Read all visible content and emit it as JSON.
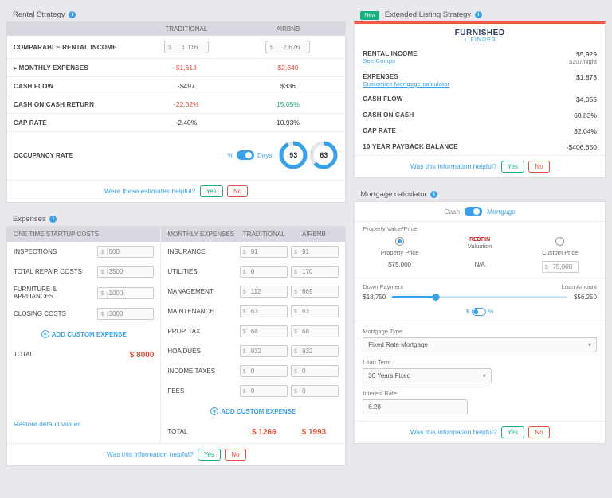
{
  "rental": {
    "title": "Rental Strategy",
    "col1": "TRADITIONAL",
    "col2": "AIRBNB",
    "rows": {
      "income": {
        "label": "COMPARABLE RENTAL INCOME",
        "trad": "1,116",
        "airbnb": "2,676"
      },
      "monthly": {
        "label": "▸ MONTHLY EXPENSES",
        "trad": "$1,613",
        "airbnb": "$2,340"
      },
      "cashflow": {
        "label": "CASH FLOW",
        "trad": "-$497",
        "airbnb": "$336"
      },
      "coc": {
        "label": "CASH ON CASH RETURN",
        "trad": "-22.32%",
        "airbnb": "15.05%"
      },
      "cap": {
        "label": "CAP RATE",
        "trad": "-2.40%",
        "airbnb": "10.93%"
      },
      "occ": {
        "label": "OCCUPANCY RATE",
        "pct": "%",
        "days": "Days",
        "trad": "93",
        "airbnb": "63",
        "trad_pct": 93,
        "airbnb_pct": 63
      }
    },
    "feedback": "Were these estimates helpful?"
  },
  "extended": {
    "newBadge": "New",
    "title": "Extended Listing Strategy",
    "logo1": "FURNISHED",
    "logo2": "FINDER",
    "rows": {
      "income": {
        "k": "RENTAL INCOME",
        "sub": "See Comps",
        "v": "$5,929",
        "v2": "$207/night"
      },
      "expenses": {
        "k": "EXPENSES",
        "sub": "Customize   Mortgage calculator",
        "v": "$1,873"
      },
      "cashflow": {
        "k": "CASH FLOW",
        "v": "$4,055"
      },
      "coc": {
        "k": "CASH ON CASH",
        "v": "60.83%"
      },
      "cap": {
        "k": "CAP RATE",
        "v": "32.04%"
      },
      "payback": {
        "k": "10 YEAR PAYBACK BALANCE",
        "v": "-$406,650"
      }
    },
    "feedback": "Was this information helpful?"
  },
  "expenses": {
    "title": "Expenses",
    "startupHdr": "ONE TIME STARTUP COSTS",
    "monthlyHdr": "MONTHLY EXPENSES",
    "tradHdr": "TRADITIONAL",
    "airbnbHdr": "AIRBNB",
    "startup": [
      {
        "label": "INSPECTIONS",
        "v": "500"
      },
      {
        "label": "TOTAL REPAIR COSTS",
        "v": "3500"
      },
      {
        "label": "FURNITURE & APPLIANCES",
        "v": "1000"
      },
      {
        "label": "CLOSING COSTS",
        "v": "3000"
      }
    ],
    "startupTotal": {
      "label": "TOTAL",
      "v": "$ 8000"
    },
    "monthly": [
      {
        "label": "INSURANCE",
        "t": "91",
        "a": "91"
      },
      {
        "label": "UTILITIES",
        "t": "0",
        "a": "170"
      },
      {
        "label": "MANAGEMENT",
        "t": "112",
        "a": "669"
      },
      {
        "label": "MAINTENANCE",
        "t": "63",
        "a": "63"
      },
      {
        "label": "PROP. TAX",
        "t": "68",
        "a": "68"
      },
      {
        "label": "HOA DUES",
        "t": "932",
        "a": "932"
      },
      {
        "label": "INCOME TAXES",
        "t": "0",
        "a": "0"
      },
      {
        "label": "FEES",
        "t": "0",
        "a": "0"
      }
    ],
    "monthlyTotal": {
      "label": "TOTAL",
      "t": "$ 1266",
      "a": "$ 1993"
    },
    "addCustom": "ADD CUSTOM EXPENSE",
    "restore": "Restore default values",
    "feedback": "Was this information helpful?"
  },
  "mortgage": {
    "title": "Mortgage calculator",
    "cash": "Cash",
    "mort": "Mortgage",
    "pvHdr": "Property Value/Price",
    "cols": {
      "prop": {
        "label": "Property Price",
        "v": "$75,000"
      },
      "redfin": {
        "brand": "REDFIN",
        "label": "Valuation",
        "v": "N/A"
      },
      "custom": {
        "label": "Custom Price",
        "v": "75,000"
      }
    },
    "dp": "Down Payment",
    "la": "Loan Amount",
    "dpVal": "$18,750",
    "laVal": "$56,250",
    "dollarSign": "$",
    "pctSign": "%",
    "mtype": {
      "label": "Mortgage Type",
      "v": "Fixed Rate Mortgage"
    },
    "term": {
      "label": "Loan Term",
      "v": "30 Years Fixed"
    },
    "rate": {
      "label": "Interest Rate",
      "v": "6.28"
    },
    "feedback": "Was this information helpful?"
  },
  "common": {
    "yes": "Yes",
    "no": "No"
  }
}
